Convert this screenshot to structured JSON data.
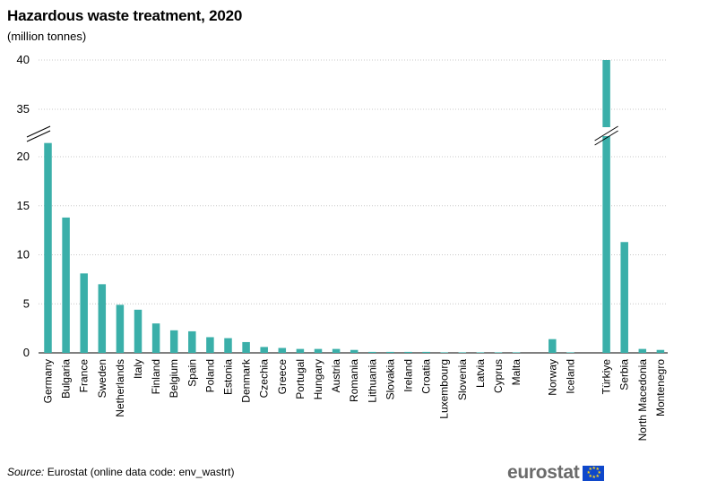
{
  "title": "Hazardous waste treatment, 2020",
  "subtitle": "(million  tonnes)",
  "source": {
    "label": "Source:",
    "text": " Eurostat (online data code: env_wastrt)"
  },
  "logo": {
    "text": "eurostat"
  },
  "colors": {
    "bar": "#3aafa9",
    "grid": "#c8c8c8",
    "axis": "#000000"
  },
  "chart_data": {
    "type": "bar",
    "y_axis_break": true,
    "yticks": [
      0,
      5,
      10,
      15,
      20,
      35,
      40
    ],
    "grid": true,
    "groups": [
      {
        "categories": [
          "Germany",
          "Bulgaria",
          "France",
          "Sweden",
          "Netherlands",
          "Italy",
          "Finland",
          "Belgium",
          "Spain",
          "Poland",
          "Estonia",
          "Denmark",
          "Czechia",
          "Greece",
          "Portugal",
          "Hungary",
          "Austria",
          "Romania",
          "Lithuania",
          "Slovakia",
          "Ireland",
          "Croatia",
          "Luxembourg",
          "Slovenia",
          "Latvia",
          "Cyprus",
          "Malta"
        ],
        "values": [
          21.4,
          13.8,
          8.1,
          7.0,
          4.9,
          4.4,
          3.0,
          2.3,
          2.2,
          1.6,
          1.5,
          1.1,
          0.6,
          0.5,
          0.4,
          0.4,
          0.4,
          0.3,
          0.1,
          0.1,
          0.1,
          0.1,
          0.05,
          0.05,
          0.05,
          0.03,
          0.02
        ]
      },
      {
        "categories": [
          "Norway",
          "Iceland"
        ],
        "values": [
          1.4,
          0.02
        ]
      },
      {
        "categories": [
          "Türkiye",
          "Serbia",
          "North Macedonia",
          "Montenegro"
        ],
        "values": [
          40.0,
          11.3,
          0.4,
          0.3
        ]
      }
    ]
  }
}
